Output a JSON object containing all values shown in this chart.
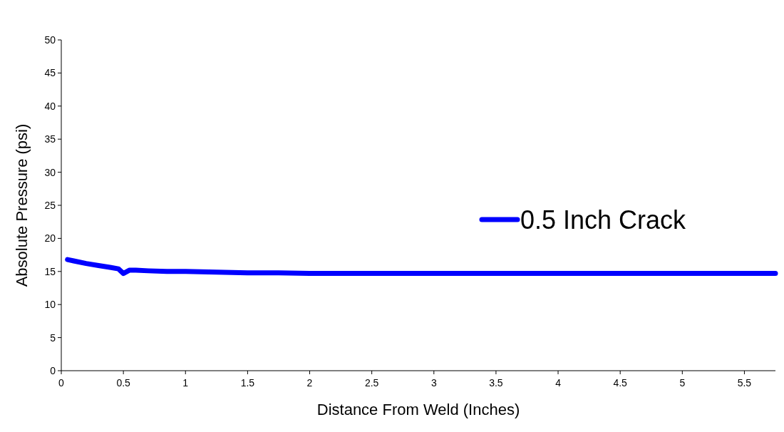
{
  "chart_data": {
    "type": "line",
    "xlabel": "Distance From Weld (Inches)",
    "ylabel": "Absolute Pressure (psi)",
    "xlim": [
      0,
      5.75
    ],
    "xticks": [
      0,
      0.5,
      1,
      1.5,
      2,
      2.5,
      3,
      3.5,
      4,
      4.5,
      5,
      5.5
    ],
    "ylim": [
      0,
      50
    ],
    "yticks": [
      0,
      5,
      10,
      15,
      20,
      25,
      30,
      35,
      40,
      45,
      50
    ],
    "legend": "right",
    "grid": false,
    "series": [
      {
        "name": "0.5 Inch Crack",
        "color": "#0000ff",
        "x": [
          0.05,
          0.1,
          0.2,
          0.3,
          0.4,
          0.46,
          0.5,
          0.55,
          0.6,
          0.7,
          0.85,
          1,
          1.25,
          1.5,
          1.75,
          2,
          2.5,
          3,
          4,
          5,
          5.75
        ],
        "values": [
          16.8,
          16.6,
          16.2,
          15.9,
          15.6,
          15.4,
          14.7,
          15.2,
          15.2,
          15.1,
          15.0,
          15.0,
          14.9,
          14.8,
          14.8,
          14.7,
          14.7,
          14.7,
          14.7,
          14.7,
          14.7
        ]
      }
    ]
  }
}
